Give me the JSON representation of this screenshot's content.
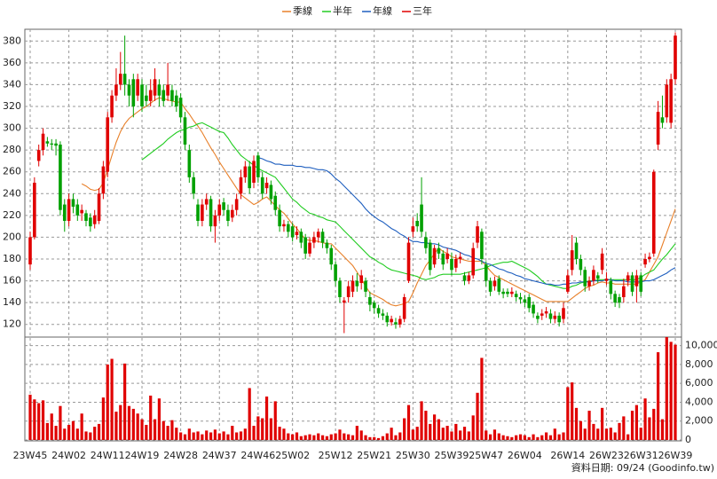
{
  "chart_data": {
    "type": "candlestick",
    "categories": [
      "23W45",
      null,
      null,
      null,
      null,
      null,
      null,
      null,
      null,
      "24W02",
      null,
      null,
      null,
      null,
      null,
      null,
      null,
      null,
      "24W11",
      null,
      null,
      null,
      null,
      null,
      null,
      null,
      "24W19",
      null,
      null,
      null,
      null,
      null,
      null,
      null,
      null,
      "24W28",
      null,
      null,
      null,
      null,
      null,
      null,
      null,
      null,
      "24W37",
      null,
      null,
      null,
      null,
      null,
      null,
      null,
      null,
      "24W46",
      null,
      null,
      null,
      null,
      null,
      null,
      null,
      "25W02",
      null,
      null,
      null,
      null,
      null,
      null,
      null,
      null,
      null,
      "25W12",
      null,
      null,
      null,
      null,
      null,
      null,
      null,
      null,
      "25W21",
      null,
      null,
      null,
      null,
      null,
      null,
      null,
      null,
      "25W30",
      null,
      null,
      null,
      null,
      null,
      null,
      null,
      null,
      "25W39",
      null,
      null,
      null,
      null,
      null,
      null,
      null,
      "25W47",
      null,
      null,
      null,
      null,
      null,
      null,
      null,
      null,
      "26W04",
      null,
      null,
      null,
      null,
      null,
      null,
      null,
      null,
      null,
      "26W14",
      null,
      null,
      null,
      null,
      null,
      null,
      null,
      null,
      "26W23",
      null,
      null,
      null,
      null,
      null,
      null,
      null,
      "26W31",
      null,
      null,
      null,
      null,
      null,
      null,
      null,
      "26W39"
    ],
    "open": [
      175,
      200,
      270,
      280,
      288,
      286,
      286,
      285,
      230,
      215,
      235,
      230,
      222,
      222,
      218,
      212,
      215,
      240,
      260,
      310,
      330,
      340,
      350,
      340,
      345,
      330,
      340,
      330,
      325,
      330,
      340,
      335,
      330,
      335,
      330,
      328,
      310,
      280,
      255,
      230,
      215,
      230,
      235,
      210,
      220,
      232,
      225,
      218,
      225,
      240,
      255,
      265,
      250,
      275,
      255,
      245,
      248,
      238,
      225,
      210,
      212,
      210,
      202,
      205,
      200,
      185,
      195,
      200,
      205,
      195,
      190,
      175,
      160,
      140,
      145,
      150,
      160,
      158,
      160,
      145,
      140,
      135,
      130,
      128,
      122,
      122,
      120,
      125,
      160,
      205,
      215,
      230,
      200,
      195,
      175,
      190,
      185,
      180,
      180,
      172,
      180,
      165,
      160,
      165,
      195,
      205,
      175,
      160,
      155,
      162,
      150,
      150,
      148,
      148,
      145,
      143,
      145,
      138,
      128,
      128,
      130,
      130,
      125,
      128,
      125,
      150,
      170,
      195,
      180,
      170,
      155,
      160,
      165,
      170,
      160,
      160,
      148,
      145,
      145,
      160,
      165,
      155,
      165,
      175,
      180,
      185,
      285,
      310,
      310,
      305,
      345
    ],
    "high": [
      205,
      255,
      285,
      300,
      292,
      290,
      290,
      288,
      235,
      240,
      240,
      235,
      230,
      225,
      222,
      225,
      245,
      270,
      315,
      335,
      355,
      370,
      385,
      345,
      350,
      350,
      345,
      340,
      345,
      355,
      345,
      340,
      360,
      340,
      335,
      332,
      315,
      285,
      260,
      235,
      235,
      240,
      238,
      225,
      235,
      236,
      230,
      230,
      240,
      262,
      270,
      270,
      275,
      278,
      260,
      255,
      252,
      242,
      230,
      216,
      215,
      213,
      210,
      208,
      203,
      200,
      205,
      208,
      208,
      198,
      193,
      178,
      163,
      145,
      160,
      165,
      167,
      170,
      163,
      150,
      142,
      138,
      134,
      131,
      128,
      126,
      128,
      148,
      200,
      218,
      222,
      255,
      205,
      198,
      193,
      195,
      188,
      190,
      186,
      184,
      186,
      168,
      168,
      195,
      215,
      208,
      178,
      163,
      164,
      165,
      153,
      153,
      154,
      151,
      149,
      147,
      148,
      141,
      131,
      134,
      136,
      134,
      132,
      131,
      140,
      170,
      202,
      200,
      184,
      173,
      164,
      174,
      168,
      190,
      168,
      163,
      151,
      148,
      162,
      168,
      168,
      170,
      168,
      185,
      186,
      262,
      325,
      330,
      345,
      350,
      388
    ],
    "low": [
      170,
      198,
      265,
      275,
      283,
      280,
      275,
      220,
      205,
      210,
      222,
      215,
      215,
      210,
      205,
      208,
      212,
      235,
      255,
      305,
      325,
      335,
      330,
      320,
      310,
      325,
      315,
      320,
      320,
      325,
      320,
      320,
      325,
      320,
      315,
      305,
      280,
      250,
      235,
      210,
      210,
      225,
      205,
      195,
      215,
      220,
      210,
      214,
      220,
      235,
      250,
      240,
      245,
      250,
      235,
      240,
      230,
      220,
      205,
      205,
      200,
      196,
      198,
      190,
      180,
      182,
      190,
      195,
      190,
      185,
      170,
      155,
      140,
      112,
      140,
      145,
      150,
      152,
      145,
      132,
      130,
      126,
      124,
      118,
      119,
      116,
      117,
      122,
      158,
      200,
      205,
      200,
      185,
      165,
      172,
      180,
      170,
      176,
      165,
      168,
      176,
      156,
      157,
      162,
      190,
      175,
      155,
      146,
      151,
      147,
      144,
      145,
      145,
      141,
      139,
      136,
      131,
      126,
      121,
      124,
      126,
      121,
      121,
      118,
      121,
      148,
      165,
      175,
      165,
      150,
      151,
      156,
      158,
      166,
      156,
      143,
      136,
      135,
      140,
      155,
      146,
      140,
      146,
      172,
      177,
      182,
      280,
      300,
      305,
      300,
      340
    ],
    "close": [
      200,
      250,
      280,
      295,
      286,
      285,
      284,
      225,
      215,
      235,
      228,
      220,
      225,
      215,
      210,
      220,
      240,
      265,
      310,
      330,
      340,
      350,
      340,
      330,
      320,
      345,
      320,
      325,
      335,
      345,
      330,
      325,
      340,
      325,
      320,
      310,
      285,
      255,
      240,
      215,
      230,
      235,
      210,
      220,
      230,
      225,
      215,
      225,
      235,
      255,
      265,
      245,
      270,
      255,
      240,
      250,
      235,
      225,
      210,
      212,
      205,
      200,
      205,
      195,
      185,
      195,
      200,
      205,
      195,
      190,
      175,
      160,
      145,
      142,
      155,
      160,
      155,
      165,
      150,
      138,
      135,
      130,
      128,
      122,
      125,
      120,
      125,
      145,
      195,
      210,
      210,
      205,
      190,
      170,
      190,
      185,
      175,
      185,
      170,
      180,
      182,
      160,
      165,
      190,
      210,
      180,
      160,
      150,
      160,
      150,
      148,
      148,
      150,
      145,
      143,
      140,
      135,
      130,
      125,
      130,
      132,
      125,
      128,
      122,
      135,
      165,
      188,
      180,
      170,
      155,
      160,
      170,
      162,
      185,
      162,
      148,
      140,
      140,
      155,
      165,
      150,
      165,
      150,
      180,
      182,
      260,
      315,
      305,
      340,
      345,
      385
    ],
    "up_color": "#e00000",
    "down_color": "#00a000",
    "series": [
      {
        "name": "季線",
        "color": "#e8802a",
        "values": [
          null,
          null,
          null,
          null,
          null,
          null,
          null,
          null,
          null,
          null,
          null,
          null,
          249,
          247,
          244,
          243,
          244,
          250,
          262,
          275,
          287,
          297,
          304,
          309,
          312,
          315,
          318,
          320,
          323,
          326,
          328,
          327,
          326,
          325,
          324,
          324,
          318,
          313,
          307,
          302,
          296,
          289,
          282,
          276,
          269,
          263,
          257,
          251,
          245,
          239,
          236,
          233,
          230,
          232,
          235,
          237,
          233,
          229,
          225,
          222,
          217,
          212,
          208,
          203,
          198,
          197,
          197,
          196,
          195,
          194,
          194,
          190,
          186,
          182,
          178,
          174,
          168,
          162,
          155,
          149,
          147,
          145,
          143,
          140,
          138,
          137,
          138,
          139,
          141,
          149,
          158,
          166,
          174,
          179,
          185,
          190,
          187,
          185,
          182,
          181,
          180,
          179,
          178,
          178,
          178,
          178,
          174,
          169,
          165,
          163,
          161,
          159,
          157,
          155,
          153,
          151,
          149,
          147,
          145,
          143,
          141,
          141,
          141,
          141,
          141,
          141,
          144,
          147,
          150,
          153,
          155,
          156,
          158,
          159,
          158,
          158,
          157,
          157,
          157,
          157,
          157,
          157,
          159,
          161,
          168,
          175,
          182,
          193,
          204,
          215,
          226
        ]
      },
      {
        "name": "半年",
        "color": "#22cc22",
        "values": [
          null,
          null,
          null,
          null,
          null,
          null,
          null,
          null,
          null,
          null,
          null,
          null,
          null,
          null,
          null,
          null,
          null,
          null,
          null,
          null,
          null,
          null,
          null,
          null,
          null,
          null,
          271,
          274,
          277,
          280,
          283,
          286,
          290,
          293,
          296,
          298,
          299,
          301,
          302,
          304,
          305,
          303,
          301,
          299,
          297,
          296,
          291,
          285,
          280,
          275,
          272,
          269,
          266,
          263,
          261,
          259,
          257,
          255,
          250,
          245,
          240,
          235,
          232,
          228,
          225,
          222,
          221,
          219,
          218,
          216,
          215,
          214,
          210,
          206,
          202,
          198,
          194,
          190,
          186,
          182,
          180,
          177,
          175,
          172,
          170,
          169,
          168,
          167,
          166,
          165,
          164,
          162,
          161,
          162,
          163,
          165,
          166,
          166,
          166,
          166,
          166,
          167,
          168,
          169,
          170,
          171,
          172,
          174,
          175,
          176,
          177,
          177,
          178,
          176,
          174,
          172,
          170,
          167,
          164,
          160,
          157,
          156,
          155,
          154,
          153,
          153,
          155,
          156,
          158,
          159,
          160,
          160,
          161,
          161,
          161,
          161,
          161,
          161,
          161,
          161,
          161,
          161,
          163,
          166,
          168,
          170,
          175,
          180,
          184,
          189,
          194
        ]
      },
      {
        "name": "年線",
        "color": "#1f5fbf",
        "values": [
          null,
          null,
          null,
          null,
          null,
          null,
          null,
          null,
          null,
          null,
          null,
          null,
          null,
          null,
          null,
          null,
          null,
          null,
          null,
          null,
          null,
          null,
          null,
          null,
          null,
          null,
          null,
          null,
          null,
          null,
          null,
          null,
          null,
          null,
          null,
          null,
          null,
          null,
          null,
          null,
          null,
          null,
          null,
          null,
          null,
          null,
          null,
          null,
          null,
          null,
          null,
          null,
          null,
          273,
          272,
          270,
          269,
          267,
          267,
          266,
          266,
          266,
          265,
          265,
          264,
          264,
          263,
          262,
          262,
          261,
          258,
          254,
          251,
          247,
          243,
          239,
          235,
          231,
          226,
          222,
          219,
          216,
          214,
          211,
          208,
          206,
          203,
          201,
          198,
          196,
          196,
          195,
          195,
          194,
          194,
          193,
          191,
          190,
          189,
          188,
          186,
          184,
          183,
          181,
          180,
          178,
          176,
          175,
          173,
          171,
          170,
          168,
          167,
          165,
          164,
          162,
          161,
          160,
          159,
          158,
          157,
          157,
          156,
          156,
          157,
          157,
          158,
          158,
          159,
          159,
          159,
          160,
          160,
          160,
          161,
          161,
          160,
          160,
          160,
          159,
          159,
          159,
          159,
          160,
          160,
          161,
          163,
          165,
          167,
          170,
          172
        ]
      },
      {
        "name": "三年",
        "color": "#e00000"
      }
    ],
    "ylim": [
      110,
      390
    ],
    "yticks": [
      120,
      140,
      160,
      180,
      200,
      220,
      240,
      260,
      280,
      300,
      320,
      340,
      360,
      380
    ],
    "grid": true,
    "volume": {
      "color": "#e00000",
      "values": [
        4800,
        4300,
        3900,
        4200,
        1800,
        2800,
        1500,
        3600,
        1200,
        1600,
        2000,
        1200,
        2800,
        900,
        800,
        1400,
        1700,
        4500,
        8000,
        8600,
        3000,
        3700,
        8100,
        3600,
        3300,
        2800,
        2200,
        1600,
        4700,
        2200,
        4400,
        2000,
        1500,
        2100,
        1300,
        800,
        600,
        1200,
        800,
        900,
        600,
        1000,
        800,
        1100,
        700,
        900,
        600,
        1500,
        800,
        900,
        1200,
        5500,
        1500,
        2500,
        2300,
        4600,
        2300,
        4100,
        1400,
        1200,
        700,
        600,
        800,
        400,
        500,
        600,
        500,
        700,
        500,
        400,
        600,
        700,
        1100,
        700,
        600,
        500,
        1500,
        1000,
        500,
        300,
        300,
        200,
        400,
        700,
        1300,
        500,
        800,
        2300,
        3700,
        1100,
        1400,
        4100,
        3100,
        1700,
        2700,
        2200,
        1300,
        1500,
        900,
        1700,
        1000,
        1400,
        900,
        2600,
        5000,
        8700,
        1000,
        600,
        1100,
        700,
        500,
        400,
        300,
        500,
        600,
        500,
        300,
        600,
        300,
        500,
        800,
        500,
        1200,
        600,
        800,
        5600,
        6100,
        3400,
        2000,
        1200,
        3100,
        1700,
        1200,
        3400,
        1200,
        1300,
        800,
        1800,
        2500,
        600,
        3100,
        3700,
        1300,
        4400,
        2400,
        3300,
        9300,
        2200,
        10900,
        10400,
        10100
      ],
      "ylim": [
        0,
        11000
      ],
      "yticks": [
        0,
        {
          "value": 2000,
          "label": "2,000"
        },
        {
          "value": 4000,
          "label": "4,000"
        },
        {
          "value": 6000,
          "label": "6,000"
        },
        {
          "value": 8000,
          "label": "8,000"
        },
        {
          "value": 10000,
          "label": "10,000"
        }
      ]
    },
    "footer": "資料日期: 09/24 (Goodinfo.tw)"
  }
}
